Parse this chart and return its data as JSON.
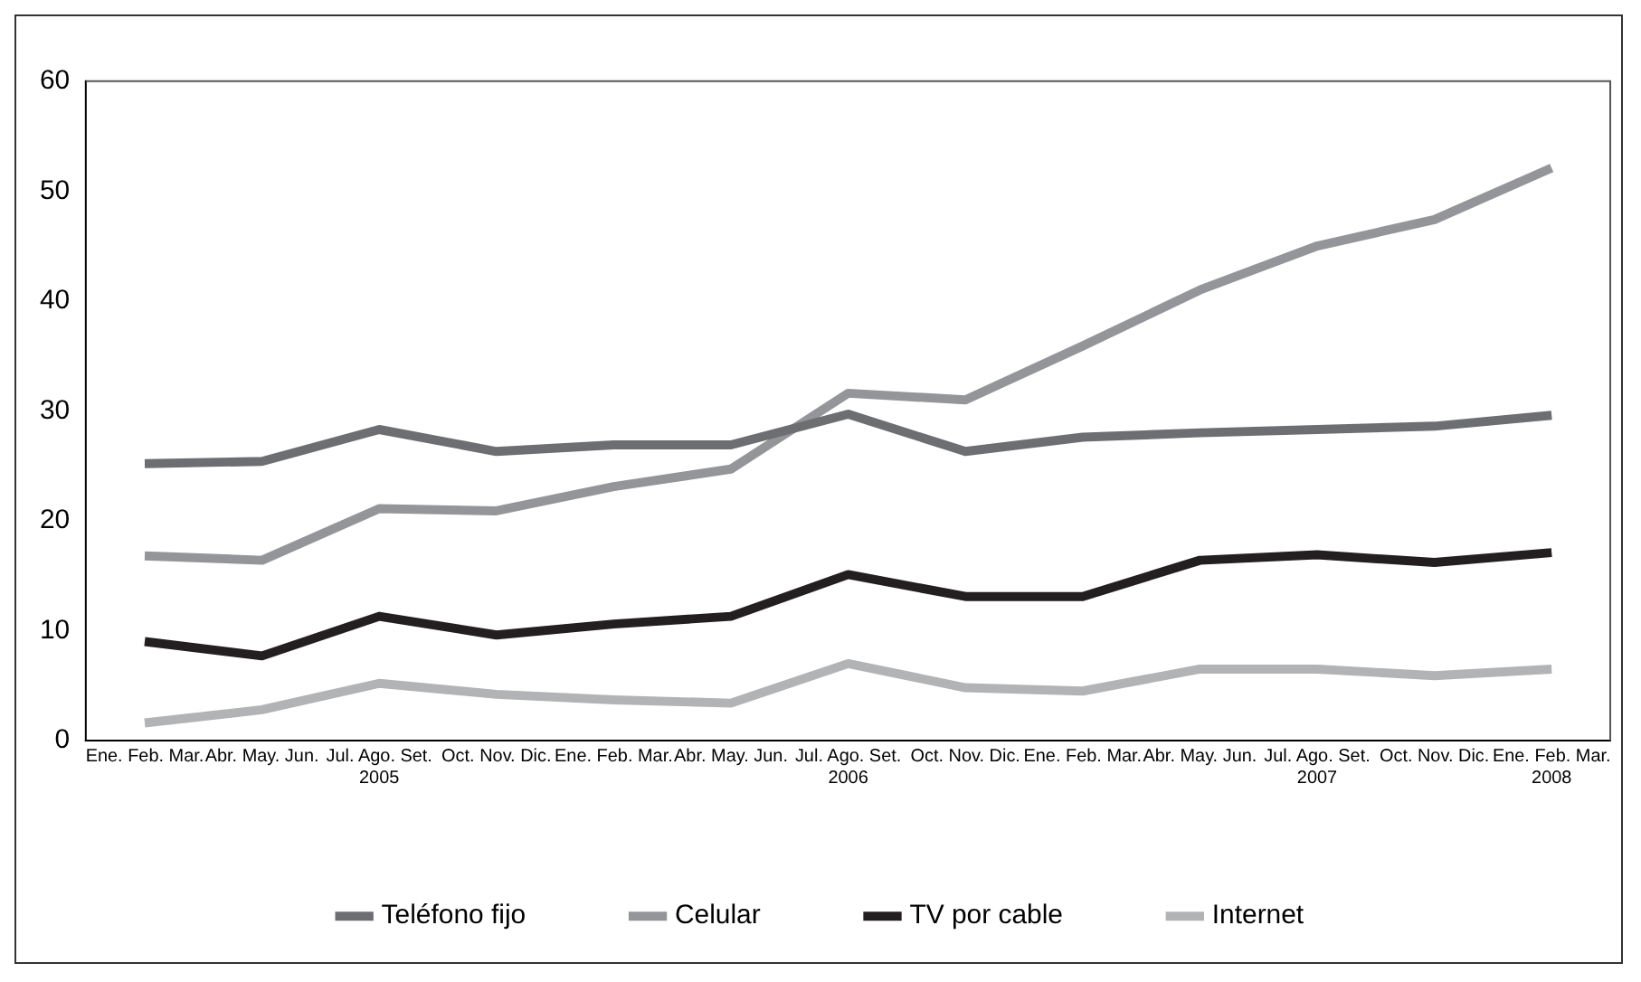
{
  "chart_data": {
    "type": "line",
    "categories": [
      "Ene. Feb. Mar.",
      "Abr. May. Jun.",
      "Jul. Ago. Set.\n2005",
      "Oct. Nov. Dic.",
      "Ene. Feb. Mar.",
      "Abr. May. Jun.",
      "Jul. Ago. Set.\n2006",
      "Oct. Nov. Dic.",
      "Ene. Feb. Mar.",
      "Abr. May. Jun.",
      "Jul. Ago. Set.\n2007",
      "Oct. Nov. Dic.",
      "Ene. Feb. Mar.\n2008"
    ],
    "series": [
      {
        "name": "Teléfono fijo",
        "color": "#6d6e71",
        "values": [
          25.2,
          25.4,
          28.3,
          26.3,
          26.9,
          26.9,
          29.7,
          26.3,
          27.6,
          28.0,
          28.3,
          28.6,
          29.6
        ]
      },
      {
        "name": "Celular",
        "color": "#949598",
        "values": [
          16.8,
          16.4,
          21.1,
          20.9,
          23.1,
          24.7,
          31.6,
          31.0,
          35.9,
          41.0,
          45.0,
          47.4,
          52.1
        ]
      },
      {
        "name": "TV por cable",
        "color": "#231f20",
        "values": [
          9.0,
          7.7,
          11.3,
          9.6,
          10.6,
          11.3,
          15.1,
          13.1,
          13.1,
          16.4,
          16.9,
          16.2,
          17.1
        ]
      },
      {
        "name": "Internet",
        "color": "#b2b3b5",
        "values": [
          1.6,
          2.8,
          5.2,
          4.2,
          3.7,
          3.4,
          7.0,
          4.8,
          4.5,
          6.5,
          6.5,
          5.9,
          6.5
        ]
      }
    ],
    "ylim": [
      0,
      60
    ],
    "yticks": [
      0,
      10,
      20,
      30,
      40,
      50,
      60
    ],
    "grid": false,
    "legend": "bottom",
    "marker": "none",
    "line_style": "solid"
  }
}
